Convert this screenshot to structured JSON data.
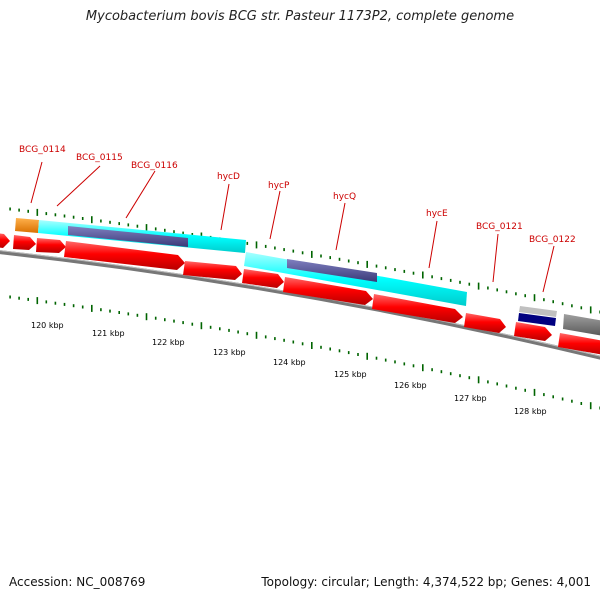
{
  "title": "Mycobacterium bovis BCG str. Pasteur 1173P2, complete genome",
  "footer": {
    "accession": "Accession: NC_008769",
    "summary": "Topology: circular; Length: 4,374,522 bp; Genes: 4,001"
  },
  "colors": {
    "label": "#cc0000",
    "forward_gene": "#ff0000",
    "cds_cyan": "#00ffff",
    "domain_purple": "#4b4b8f",
    "orange": "#ff8c00",
    "navy": "#000080",
    "grey": "#808080",
    "tick": "#006400"
  },
  "gene_labels": [
    {
      "text": "BCG_0114"
    },
    {
      "text": "BCG_0115"
    },
    {
      "text": "BCG_0116"
    },
    {
      "text": "hycD"
    },
    {
      "text": "hycP"
    },
    {
      "text": "hycQ"
    },
    {
      "text": "hycE"
    },
    {
      "text": "BCG_0121"
    },
    {
      "text": "BCG_0122"
    }
  ],
  "kbp_labels": [
    "120 kbp",
    "121 kbp",
    "122 kbp",
    "123 kbp",
    "124 kbp",
    "125 kbp",
    "126 kbp",
    "127 kbp",
    "128 kbp"
  ]
}
